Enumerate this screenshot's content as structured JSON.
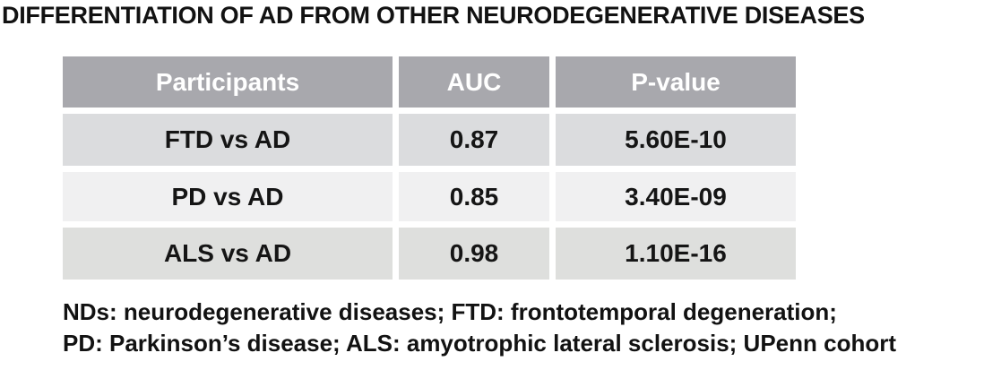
{
  "title": "DIFFERENTIATION OF AD FROM OTHER NEURODEGENERATIVE DISEASES",
  "table": {
    "headers": [
      "Participants",
      "AUC",
      "P-value"
    ],
    "rows": [
      {
        "participants": "FTD vs AD",
        "auc": "0.87",
        "p_value": "5.60E-10"
      },
      {
        "participants": "PD vs AD",
        "auc": "0.85",
        "p_value": "3.40E-09"
      },
      {
        "participants": "ALS vs AD",
        "auc": "0.98",
        "p_value": "1.10E-16"
      }
    ]
  },
  "footnote": {
    "line1": "NDs: neurodegenerative diseases; FTD: frontotemporal degeneration;",
    "line2": "PD: Parkinson’s disease; ALS: amyotrophic lateral sclerosis; UPenn cohort"
  },
  "colors": {
    "header_bg": "#a8a8ad",
    "header_text": "#ffffff",
    "row_odd_bg": "#dbdcde",
    "row_even_bg": "#f0f0f1",
    "row_third_bg": "#dedfdd",
    "text": "#121212",
    "page_bg": "#ffffff"
  },
  "chart_data": {
    "type": "table",
    "title": "DIFFERENTIATION OF AD FROM OTHER NEURODEGENERATIVE DISEASES",
    "columns": [
      "Participants",
      "AUC",
      "P-value"
    ],
    "rows": [
      [
        "FTD vs AD",
        0.87,
        "5.60E-10"
      ],
      [
        "PD vs AD",
        0.85,
        "3.40E-09"
      ],
      [
        "ALS vs AD",
        0.98,
        "1.10E-16"
      ]
    ],
    "footnotes": [
      "NDs: neurodegenerative diseases; FTD: frontotemporal degeneration;",
      "PD: Parkinson’s disease; ALS: amyotrophic lateral sclerosis; UPenn cohort"
    ]
  }
}
